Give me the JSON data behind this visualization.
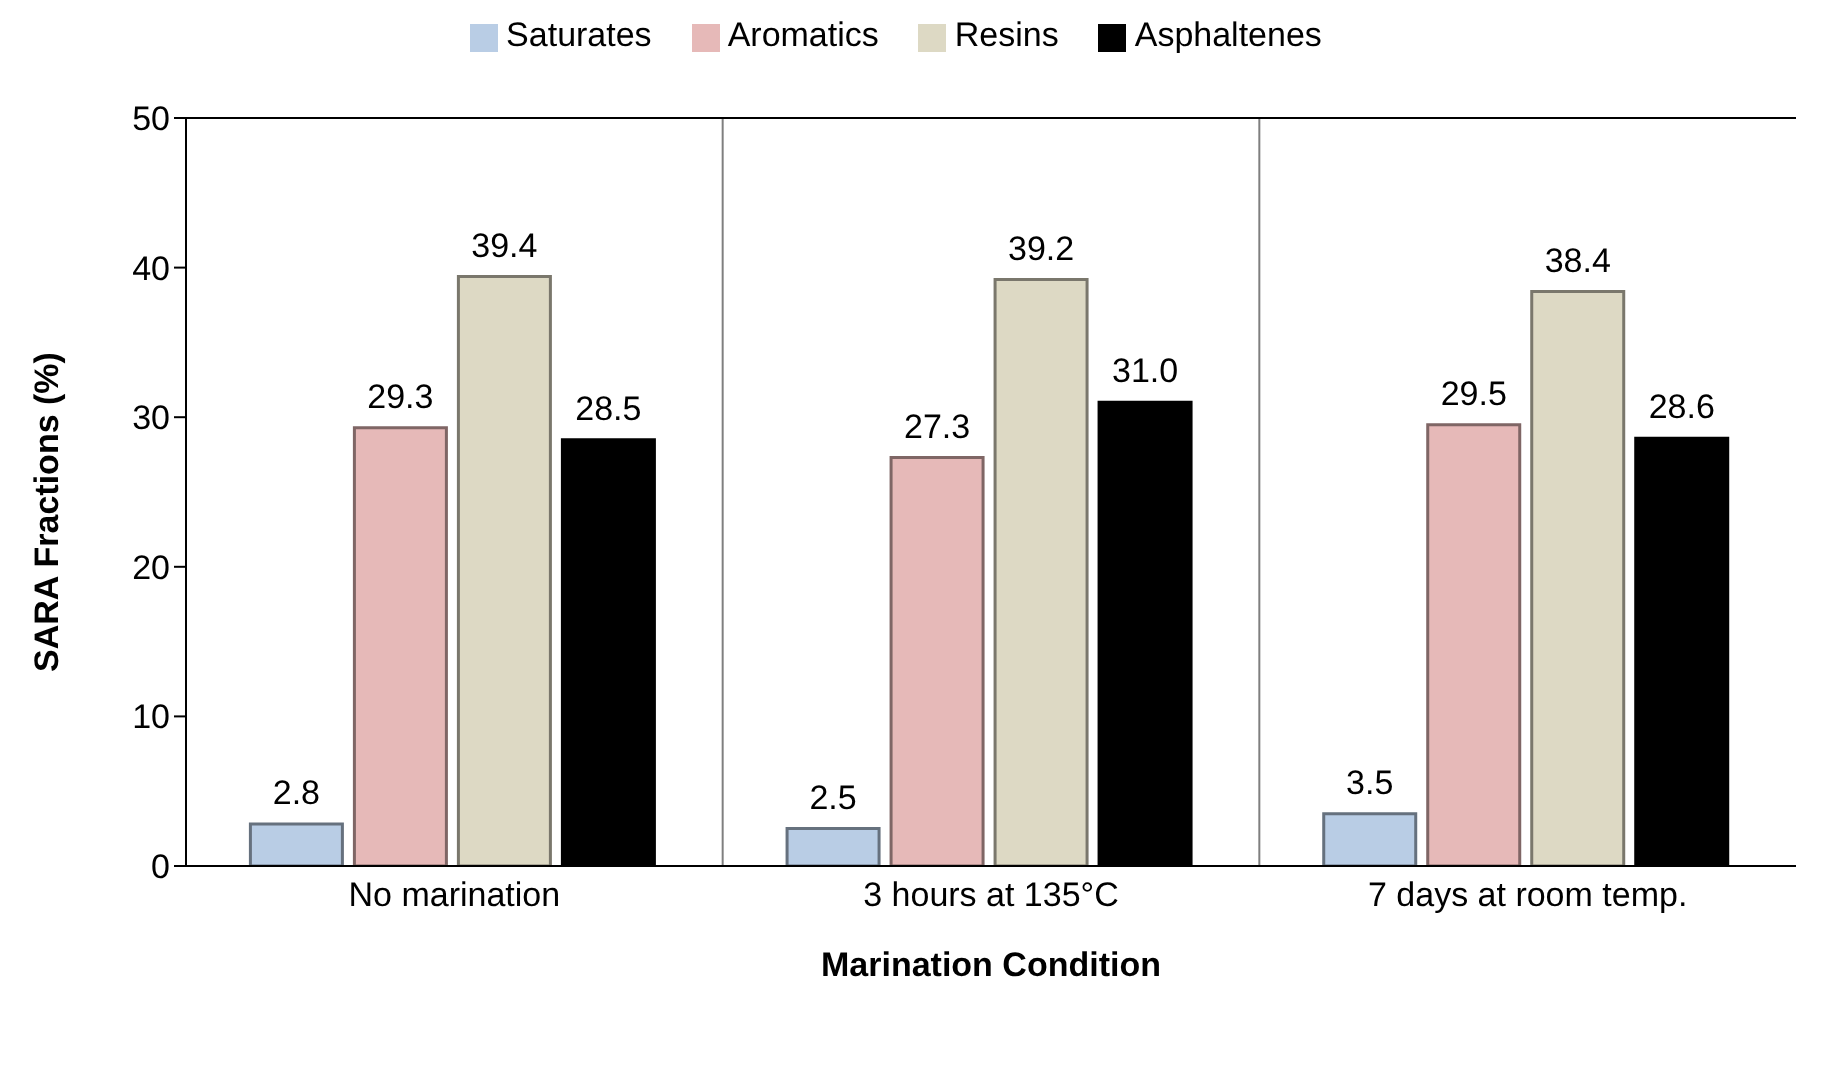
{
  "chart_data": {
    "type": "bar",
    "xlabel": "Marination Condition",
    "ylabel": "SARA Fractions (%)",
    "categories": [
      "No marination",
      "3 hours at 135°C",
      "7 days at room temp."
    ],
    "series": [
      {
        "name": "Saturates",
        "color": "#b9cde5",
        "values": [
          2.8,
          2.5,
          3.5
        ],
        "value_labels": [
          "2.8",
          "2.5",
          "3.5"
        ]
      },
      {
        "name": "Aromatics",
        "color": "#e6b9b8",
        "values": [
          29.3,
          27.3,
          29.5
        ],
        "value_labels": [
          "29.3",
          "27.3",
          "29.5"
        ]
      },
      {
        "name": "Resins",
        "color": "#ddd9c4",
        "values": [
          39.4,
          39.2,
          38.4
        ],
        "value_labels": [
          "39.4",
          "39.2",
          "38.4"
        ]
      },
      {
        "name": "Asphaltenes",
        "color": "#000000",
        "values": [
          28.5,
          31.0,
          28.6
        ],
        "value_labels": [
          "28.5",
          "31.0",
          "28.6"
        ]
      }
    ],
    "ylim": [
      0,
      50
    ],
    "yticks": [
      0,
      10,
      20,
      30,
      40,
      50
    ],
    "grid": "x",
    "legend": "top"
  }
}
